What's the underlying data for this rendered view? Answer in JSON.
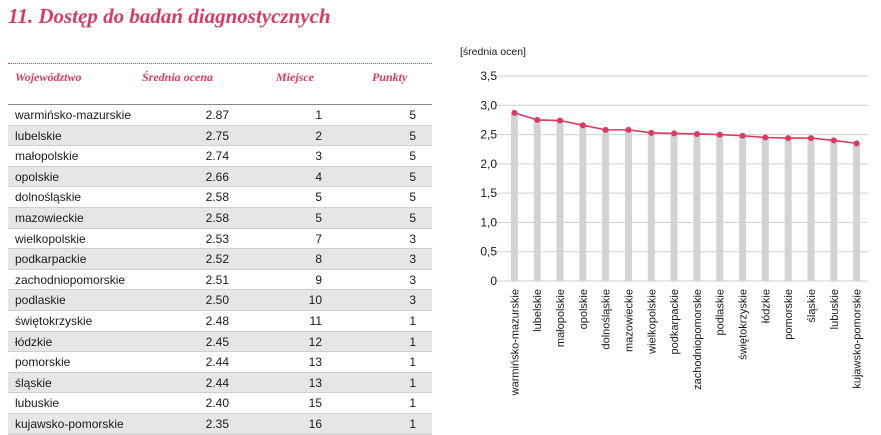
{
  "title": "11. Dostęp do badań diagnostycznych",
  "table": {
    "headers": {
      "region": "Województwo",
      "avg": "Średnia ocena",
      "place": "Miejsce",
      "points": "Punkty"
    },
    "rows": [
      {
        "region": "warmińsko-mazurskie",
        "avg": "2.87",
        "place": "1",
        "points": "5"
      },
      {
        "region": "lubelskie",
        "avg": "2.75",
        "place": "2",
        "points": "5"
      },
      {
        "region": "małopolskie",
        "avg": "2.74",
        "place": "3",
        "points": "5"
      },
      {
        "region": "opolskie",
        "avg": "2.66",
        "place": "4",
        "points": "5"
      },
      {
        "region": "dolnośląskie",
        "avg": "2.58",
        "place": "5",
        "points": "5"
      },
      {
        "region": "mazowieckie",
        "avg": "2.58",
        "place": "5",
        "points": "5"
      },
      {
        "region": "wielkopolskie",
        "avg": "2.53",
        "place": "7",
        "points": "3"
      },
      {
        "region": "podkarpackie",
        "avg": "2.52",
        "place": "8",
        "points": "3"
      },
      {
        "region": "zachodniopomorskie",
        "avg": "2.51",
        "place": "9",
        "points": "3"
      },
      {
        "region": "podlaskie",
        "avg": "2.50",
        "place": "10",
        "points": "3"
      },
      {
        "region": "świętokrzyskie",
        "avg": "2.48",
        "place": "11",
        "points": "1"
      },
      {
        "region": "łódzkie",
        "avg": "2.45",
        "place": "12",
        "points": "1"
      },
      {
        "region": "pomorskie",
        "avg": "2.44",
        "place": "13",
        "points": "1"
      },
      {
        "region": "śląskie",
        "avg": "2.44",
        "place": "13",
        "points": "1"
      },
      {
        "region": "lubuskie",
        "avg": "2.40",
        "place": "15",
        "points": "1"
      },
      {
        "region": "kujawsko-pomorskie",
        "avg": "2.35",
        "place": "16",
        "points": "1"
      }
    ]
  },
  "chart_data": {
    "type": "bar",
    "title": "",
    "ylabel": "[średnia ocen]",
    "xlabel": "",
    "categories": [
      "warmińsko-mazurskie",
      "lubelskie",
      "małopolskie",
      "opolskie",
      "dolnośląskie",
      "mazowieckie",
      "wielkopolskie",
      "podkarpackie",
      "zachodniopomorskie",
      "podlaskie",
      "świętokrzyskie",
      "łódzkie",
      "pomorskie",
      "śląskie",
      "lubuskie",
      "kujawsko-pomorskie"
    ],
    "values": [
      2.87,
      2.75,
      2.74,
      2.66,
      2.58,
      2.58,
      2.53,
      2.52,
      2.51,
      2.5,
      2.48,
      2.45,
      2.44,
      2.44,
      2.4,
      2.35
    ],
    "line_overlay": true,
    "ylim": [
      0,
      3.5
    ],
    "yticks": [
      "0",
      "0,5",
      "1,0",
      "1,5",
      "2,0",
      "2,5",
      "3,0",
      "3,5"
    ],
    "grid": true,
    "colors": {
      "bar": "#d3d3d3",
      "line": "#d93b63",
      "grid": "#cfcfcf",
      "title": "#d93b63"
    }
  }
}
